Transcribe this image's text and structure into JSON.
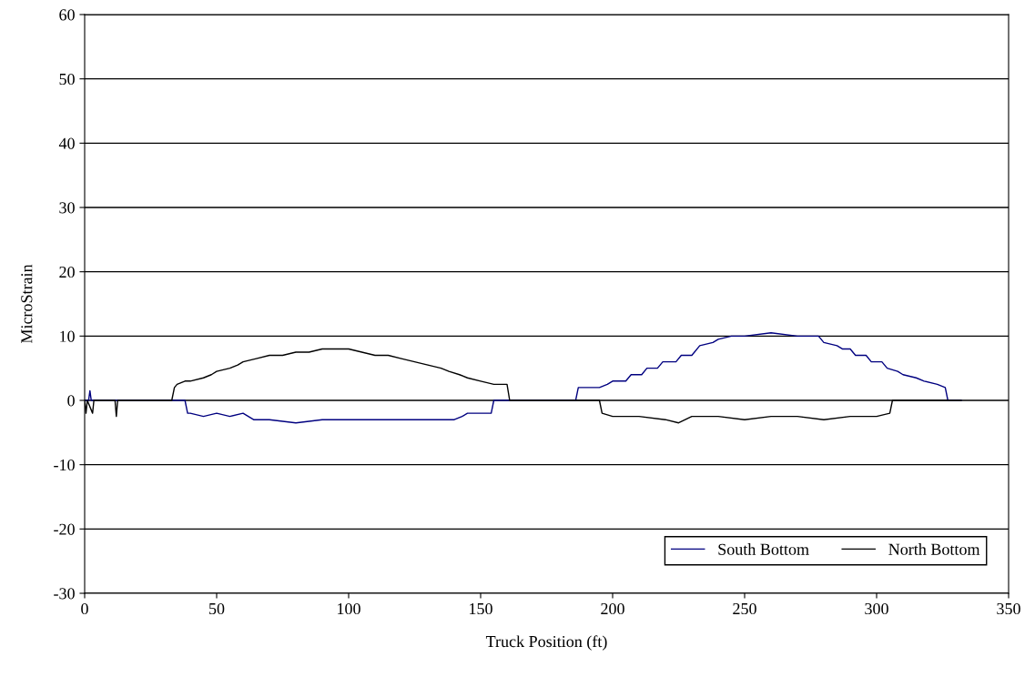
{
  "chart_data": {
    "type": "line",
    "xlabel": "Truck Position (ft)",
    "ylabel": "MicroStrain",
    "xlim": [
      0,
      350
    ],
    "xticks": [
      0,
      50,
      100,
      150,
      200,
      250,
      300,
      350
    ],
    "ylim": [
      -30,
      60
    ],
    "yticks": [
      -30,
      -20,
      -10,
      0,
      10,
      20,
      30,
      40,
      50,
      60
    ],
    "grid": "y",
    "legend": "bottom right",
    "marker": "none",
    "line_style": "solid",
    "series": [
      {
        "name": "South Bottom",
        "color": "#000080",
        "x": [
          0,
          1.5,
          2,
          2.5,
          38,
          39,
          40,
          45,
          50,
          55,
          60,
          62,
          64,
          70,
          80,
          90,
          100,
          110,
          120,
          130,
          140,
          143,
          145,
          150,
          154,
          155,
          186,
          187,
          195,
          198,
          200,
          205,
          207,
          211,
          213,
          217,
          219,
          224,
          226,
          230,
          233,
          238,
          240,
          245,
          250,
          260,
          270,
          278,
          280,
          285,
          287,
          290,
          292,
          296,
          298,
          302,
          304,
          308,
          310,
          315,
          318,
          323,
          326,
          327,
          332
        ],
        "values": [
          0,
          0,
          1.5,
          0,
          0,
          -2,
          -2,
          -2.5,
          -2,
          -2.5,
          -2,
          -2.5,
          -3,
          -3,
          -3.5,
          -3,
          -3,
          -3,
          -3,
          -3,
          -3,
          -2.5,
          -2,
          -2,
          -2,
          0,
          0,
          2,
          2,
          2.5,
          3,
          3,
          4,
          4,
          5,
          5,
          6,
          6,
          7,
          7,
          8.5,
          9,
          9.5,
          10,
          10,
          10.5,
          10,
          10,
          9,
          8.5,
          8,
          8,
          7,
          7,
          6,
          6,
          5,
          4.5,
          4,
          3.5,
          3,
          2.5,
          2,
          0,
          0
        ]
      },
      {
        "name": "North Bottom",
        "color": "#000000",
        "x": [
          0,
          0.5,
          1,
          3,
          3.5,
          11.5,
          12,
          12.5,
          33,
          34,
          35,
          38,
          40,
          45,
          48,
          50,
          55,
          58,
          60,
          65,
          70,
          75,
          80,
          85,
          90,
          95,
          100,
          105,
          110,
          115,
          120,
          125,
          130,
          135,
          138,
          142,
          145,
          150,
          155,
          160,
          161,
          195,
          196,
          200,
          210,
          220,
          225,
          230,
          240,
          250,
          260,
          270,
          280,
          290,
          300,
          305,
          306,
          332
        ],
        "values": [
          0,
          -2,
          0,
          -2,
          0,
          0,
          -2.5,
          0,
          0,
          2,
          2.5,
          3,
          3,
          3.5,
          4,
          4.5,
          5,
          5.5,
          6,
          6.5,
          7,
          7,
          7.5,
          7.5,
          8,
          8,
          8,
          7.5,
          7,
          7,
          6.5,
          6,
          5.5,
          5,
          4.5,
          4,
          3.5,
          3,
          2.5,
          2.5,
          0,
          0,
          -2,
          -2.5,
          -2.5,
          -3,
          -3.5,
          -2.5,
          -2.5,
          -3,
          -2.5,
          -2.5,
          -3,
          -2.5,
          -2.5,
          -2,
          0,
          0
        ]
      }
    ]
  }
}
